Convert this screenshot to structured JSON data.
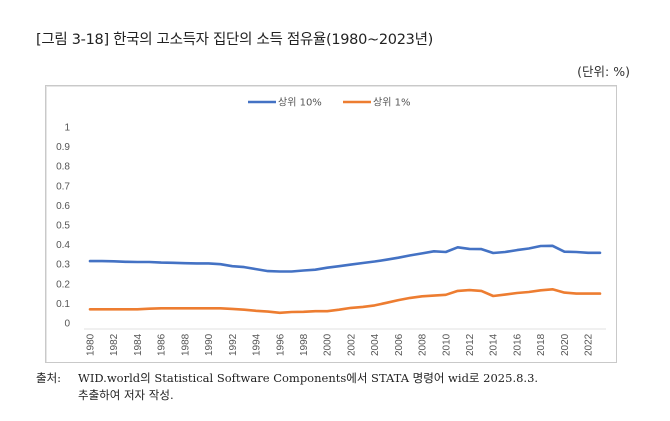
{
  "figure": {
    "title": "[그림 3-18] 한국의 고소득자 집단의 소득 점유율(1980~2023년)",
    "unit": "(단위: %)",
    "source_label": "출처:",
    "source_line1": "WID.world의 Statistical Software Components에서 STATA 명령어 wid로 2025.8.3.",
    "source_line2": "추출하여 저자 작성."
  },
  "chart_data": {
    "type": "line",
    "title": "",
    "xlabel": "",
    "ylabel": "",
    "ylim": [
      0,
      1
    ],
    "yticks": [
      "0",
      "0.1",
      "0.2",
      "0.3",
      "0.4",
      "0.5",
      "0.6",
      "0.7",
      "0.8",
      "0.9",
      "1"
    ],
    "grid": false,
    "legend_position": "top-center",
    "x": [
      1980,
      1981,
      1982,
      1983,
      1984,
      1985,
      1986,
      1987,
      1988,
      1989,
      1990,
      1991,
      1992,
      1993,
      1994,
      1995,
      1996,
      1997,
      1998,
      1999,
      2000,
      2001,
      2002,
      2003,
      2004,
      2005,
      2006,
      2007,
      2008,
      2009,
      2010,
      2011,
      2012,
      2013,
      2014,
      2015,
      2016,
      2017,
      2018,
      2019,
      2020,
      2021,
      2022,
      2023
    ],
    "xtick_labels": [
      "1980",
      "1982",
      "1984",
      "1986",
      "1988",
      "1990",
      "1992",
      "1994",
      "1996",
      "1998",
      "2000",
      "2002",
      "2004",
      "2006",
      "2008",
      "2010",
      "2012",
      "2014",
      "2016",
      "2018",
      "2020",
      "2022"
    ],
    "series": [
      {
        "name": "상위 10%",
        "color": "#4472C4",
        "values": [
          0.316,
          0.316,
          0.315,
          0.312,
          0.311,
          0.311,
          0.308,
          0.307,
          0.305,
          0.304,
          0.304,
          0.3,
          0.29,
          0.285,
          0.275,
          0.265,
          0.263,
          0.263,
          0.268,
          0.272,
          0.282,
          0.29,
          0.298,
          0.306,
          0.314,
          0.323,
          0.333,
          0.345,
          0.355,
          0.366,
          0.362,
          0.386,
          0.378,
          0.377,
          0.357,
          0.362,
          0.372,
          0.38,
          0.393,
          0.394,
          0.364,
          0.362,
          0.358,
          0.358
        ]
      },
      {
        "name": "상위 1%",
        "color": "#ED7D31",
        "values": [
          0.07,
          0.07,
          0.07,
          0.07,
          0.07,
          0.073,
          0.075,
          0.075,
          0.075,
          0.075,
          0.075,
          0.075,
          0.072,
          0.068,
          0.062,
          0.058,
          0.052,
          0.056,
          0.057,
          0.06,
          0.06,
          0.068,
          0.077,
          0.082,
          0.09,
          0.103,
          0.117,
          0.128,
          0.136,
          0.14,
          0.144,
          0.164,
          0.168,
          0.164,
          0.138,
          0.145,
          0.153,
          0.158,
          0.167,
          0.172,
          0.155,
          0.15,
          0.15,
          0.15
        ]
      }
    ]
  }
}
